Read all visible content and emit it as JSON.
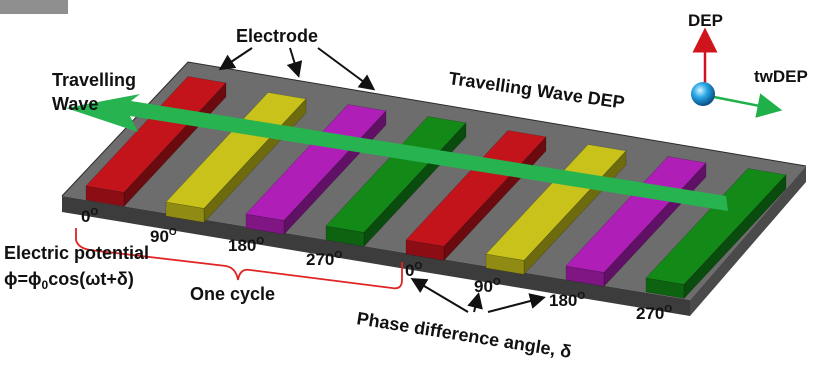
{
  "labels": {
    "electrode": "Electrode",
    "travelling_wave_line1": "Travelling",
    "travelling_wave_line2": "Wave",
    "travelling_wave_dep": "Travelling Wave DEP",
    "dep": "DEP",
    "twdep": "twDEP",
    "electric_potential": "Electric potential",
    "potential_phi": "ϕ=ϕ",
    "potential_sub": "0",
    "potential_rest": "cos(ωt+δ)",
    "one_cycle": "One cycle",
    "phase_difference": "Phase difference angle, δ"
  },
  "phase_labels": {
    "a": {
      "value": "0",
      "unit": "O"
    },
    "b": {
      "value": "90",
      "unit": "O"
    },
    "c": {
      "value": "180",
      "unit": "O"
    },
    "d": {
      "value": "270",
      "unit": "O"
    },
    "e": {
      "value": "0",
      "unit": "O"
    },
    "f": {
      "value": "90",
      "unit": "O"
    },
    "g": {
      "value": "180",
      "unit": "O"
    },
    "h": {
      "value": "270",
      "unit": "O"
    }
  },
  "colors": {
    "substrate_top": "#6d6d6d",
    "substrate_side": "#3c3c3c",
    "electrode_red": "#c3141c",
    "electrode_yellow": "#c8c21a",
    "electrode_magenta": "#b01eb8",
    "electrode_green": "#138a18",
    "wave_arrow": "#27b350",
    "dep_arrow": "#d0141c",
    "twdep_arrow": "#1fb04a",
    "particle": "#2aa8e8",
    "bracket": "#e02424"
  }
}
